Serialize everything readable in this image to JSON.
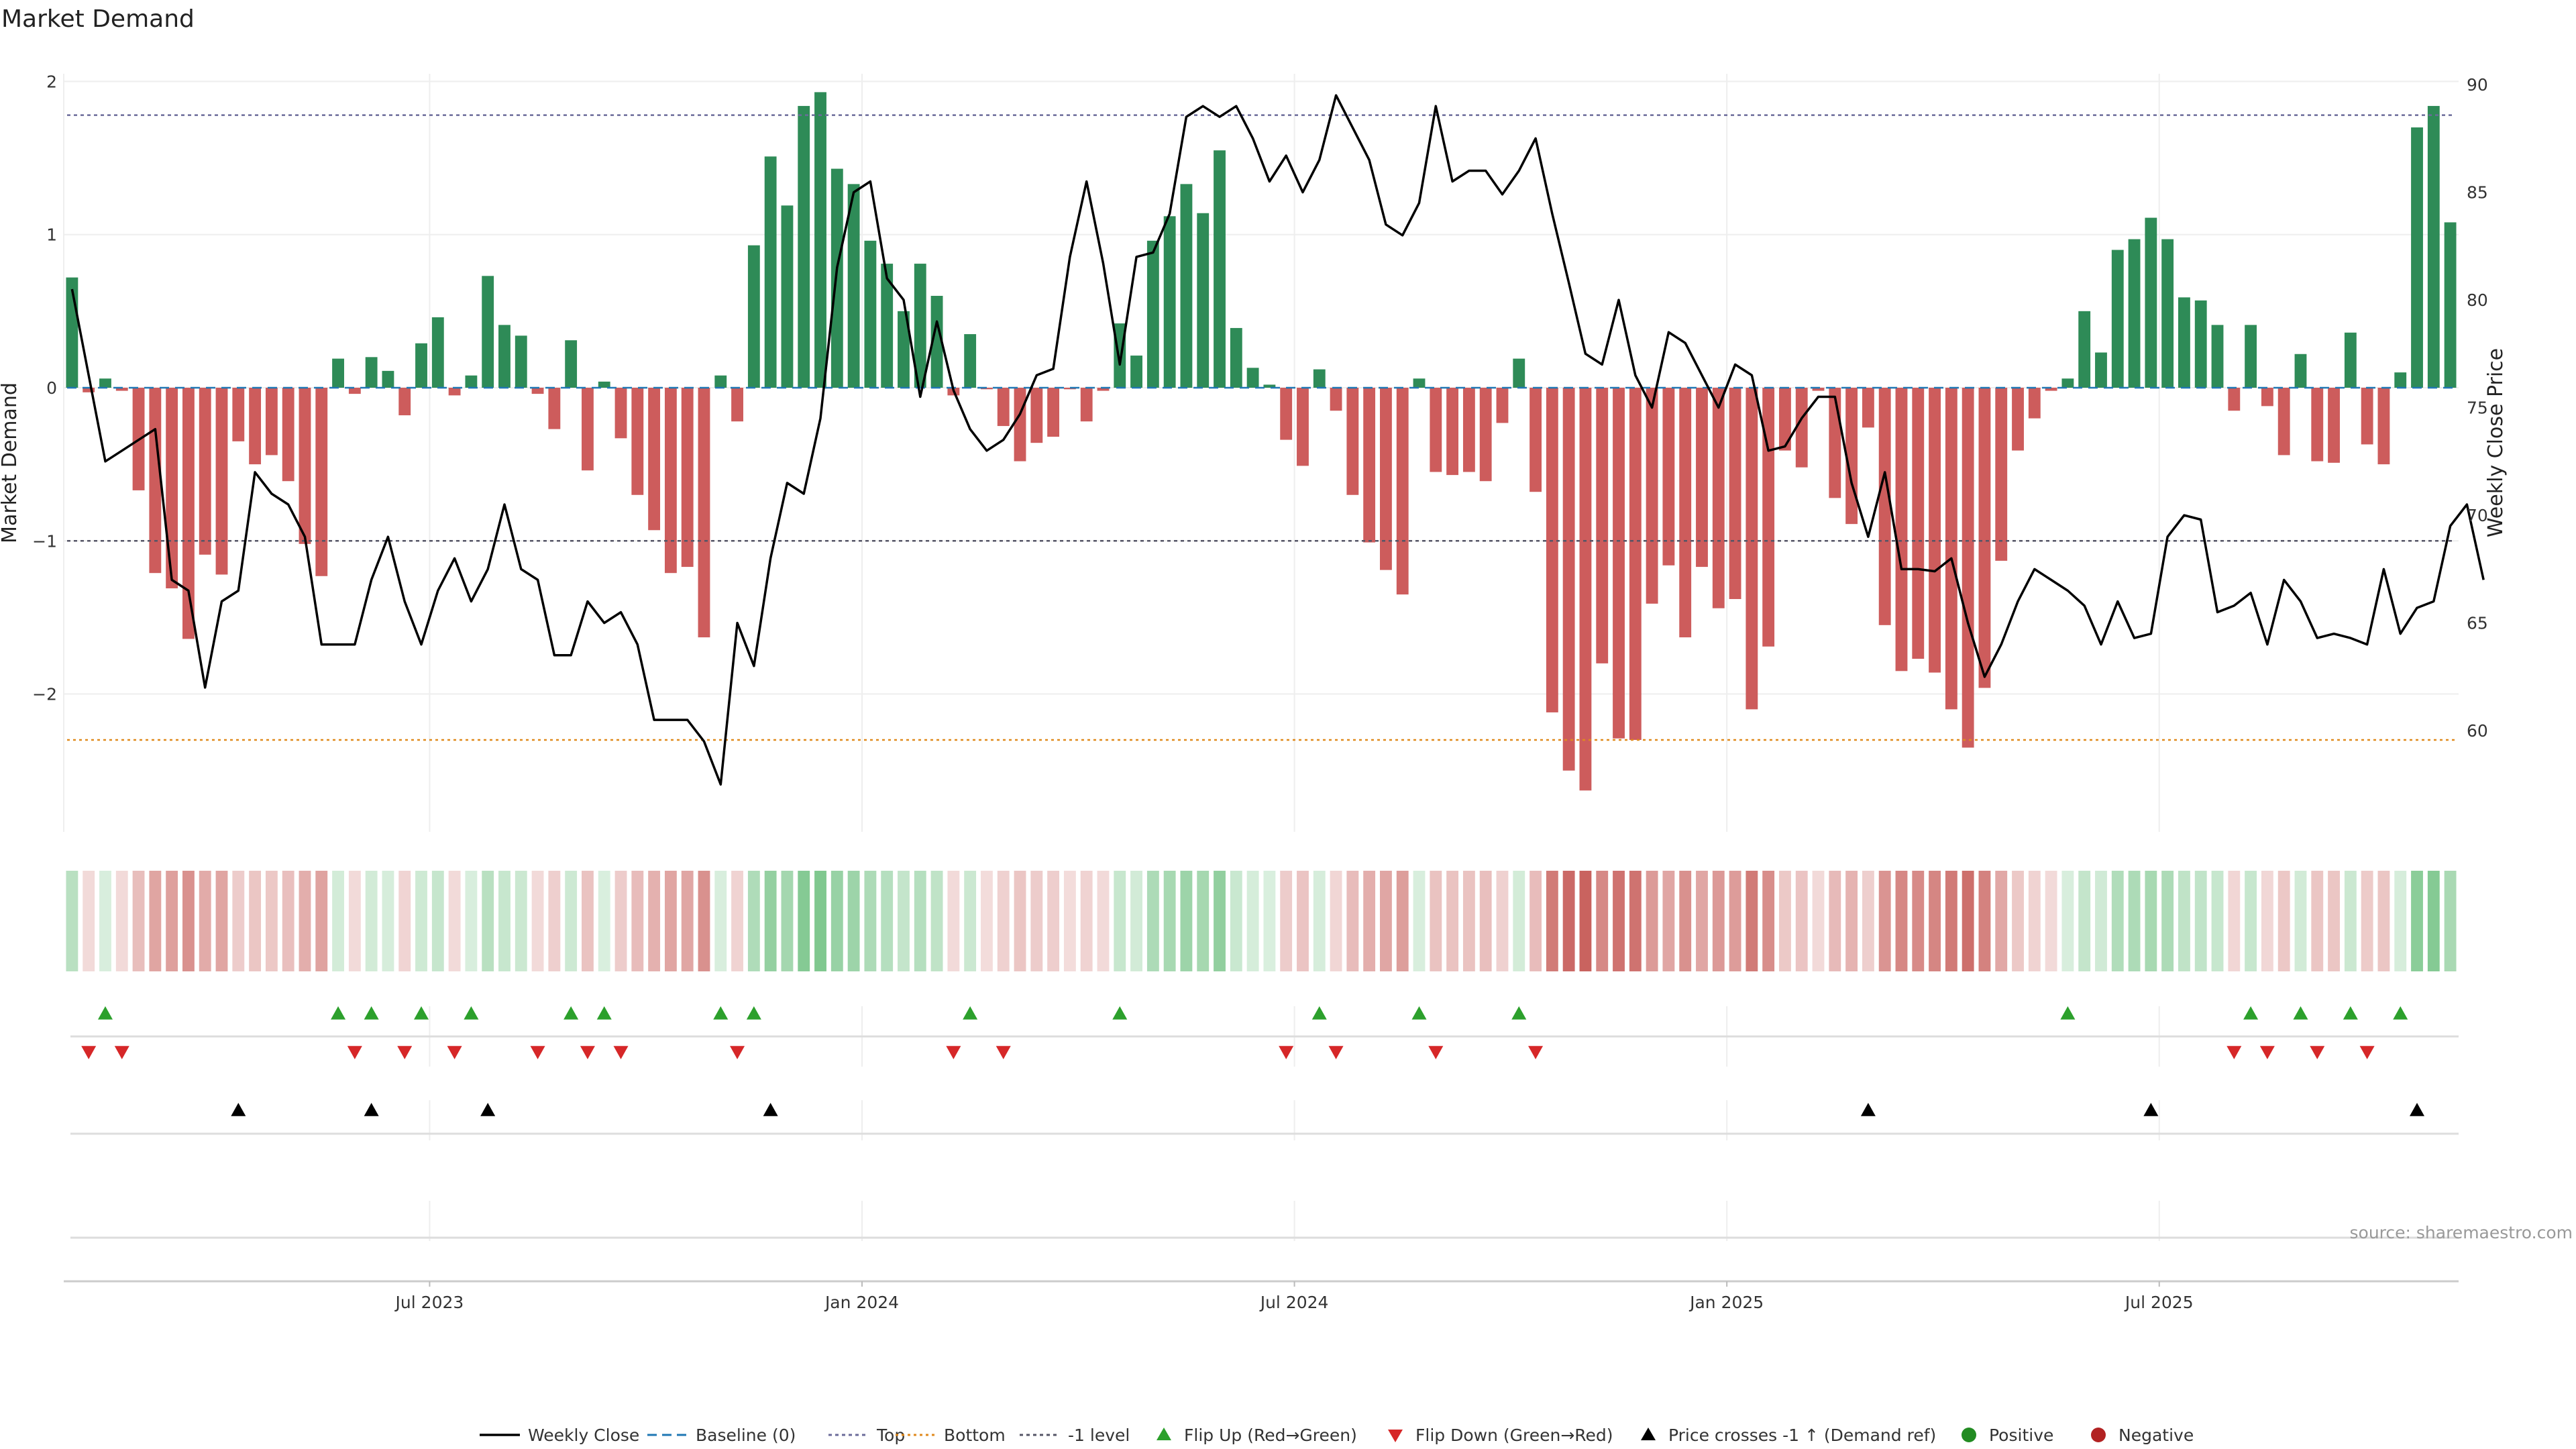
{
  "chart_data": {
    "type": "bar",
    "title": "Market Demand",
    "ylabel_left": "Market Demand",
    "ylabel_right": "Weekly Close Price",
    "source": "source: sharemaestro.com",
    "ylim_left": [
      -2.9,
      2.05
    ],
    "ylim_right": [
      55.3,
      90.5
    ],
    "yticks_left": [
      {
        "value": 2,
        "label": "2"
      },
      {
        "value": 1,
        "label": "1"
      },
      {
        "value": 0,
        "label": "0"
      },
      {
        "value": -1,
        "label": "−1"
      },
      {
        "value": -2,
        "label": "−2"
      }
    ],
    "yticks_right": [
      {
        "value": 90,
        "label": "90"
      },
      {
        "value": 85,
        "label": "85"
      },
      {
        "value": 80,
        "label": "80"
      },
      {
        "value": 75,
        "label": "75"
      },
      {
        "value": 70,
        "label": "70"
      },
      {
        "value": 65,
        "label": "65"
      },
      {
        "value": 60,
        "label": "60"
      }
    ],
    "xticks": [
      {
        "week": 22,
        "label": "Jul 2023"
      },
      {
        "week": 48,
        "label": "Jan 2024"
      },
      {
        "week": 74,
        "label": "Jul 2024"
      },
      {
        "week": 100,
        "label": "Jan 2025"
      },
      {
        "week": 126,
        "label": "Jul 2025"
      }
    ],
    "reference_lines": {
      "top": 1.78,
      "bottom": -2.3,
      "minus_one": -1.0,
      "baseline": 0
    },
    "x_count": 144,
    "series": [
      {
        "name": "Market Demand",
        "values": [
          0.72,
          -0.03,
          0.06,
          -0.02,
          -0.67,
          -1.21,
          -1.31,
          -1.64,
          -1.09,
          -1.22,
          -0.35,
          -0.5,
          -0.44,
          -0.61,
          -1.02,
          -1.23,
          0.19,
          -0.04,
          0.2,
          0.11,
          -0.18,
          0.29,
          0.46,
          -0.05,
          0.08,
          0.73,
          0.41,
          0.34,
          -0.04,
          -0.27,
          0.31,
          -0.54,
          0.04,
          -0.33,
          -0.7,
          -0.93,
          -1.21,
          -1.17,
          -1.63,
          0.08,
          -0.22,
          0.93,
          1.51,
          1.19,
          1.84,
          1.93,
          1.43,
          1.33,
          0.96,
          0.81,
          0.5,
          0.81,
          0.6,
          -0.05,
          0.35,
          -0.01,
          -0.25,
          -0.48,
          -0.36,
          -0.32,
          -0.01,
          -0.22,
          -0.02,
          0.42,
          0.21,
          0.96,
          1.12,
          1.33,
          1.14,
          1.55,
          0.39,
          0.13,
          0.02,
          -0.34,
          -0.51,
          0.12,
          -0.15,
          -0.7,
          -1.01,
          -1.19,
          -1.35,
          0.06,
          -0.55,
          -0.57,
          -0.55,
          -0.61,
          -0.23,
          0.19,
          -0.68,
          -2.12,
          -2.5,
          -2.63,
          -1.8,
          -2.29,
          -2.3,
          -1.41,
          -1.16,
          -1.63,
          -1.17,
          -1.44,
          -1.38,
          -2.1,
          -1.69,
          -0.41,
          -0.52,
          -0.02,
          -0.72,
          -0.89,
          -0.26,
          -1.55,
          -1.85,
          -1.77,
          -1.86,
          -2.1,
          -2.35,
          -1.96,
          -1.13,
          -0.41,
          -0.2,
          -0.02,
          0.06,
          0.5,
          0.23,
          0.9,
          0.97,
          1.11,
          0.97,
          0.59,
          0.57,
          0.41,
          -0.15,
          0.41,
          -0.12,
          -0.44,
          0.22,
          -0.48,
          -0.49,
          0.36,
          -0.37,
          -0.5,
          0.1,
          1.7,
          1.84,
          1.08
        ]
      },
      {
        "name": "Weekly Close",
        "values": [
          80.5,
          76.5,
          72.5,
          73.0,
          73.5,
          74.0,
          67.0,
          66.5,
          62.0,
          66.0,
          66.5,
          72.0,
          71.0,
          70.5,
          69.0,
          64.0,
          64.0,
          64.0,
          67.0,
          69.0,
          66.0,
          64.0,
          66.5,
          68.0,
          66.0,
          67.5,
          70.5,
          67.5,
          67.0,
          63.5,
          63.5,
          66.0,
          65.0,
          65.5,
          64.0,
          60.5,
          60.5,
          60.5,
          59.5,
          57.5,
          65.0,
          63.0,
          68.0,
          71.5,
          71.0,
          74.5,
          81.5,
          85.0,
          85.5,
          81.0,
          80.0,
          75.5,
          79.0,
          75.8,
          74.0,
          73.0,
          73.5,
          74.7,
          76.5,
          76.8,
          82.0,
          85.5,
          81.7,
          77.0,
          82.0,
          82.2,
          84.0,
          88.5,
          89.0,
          88.5,
          89.0,
          87.5,
          85.5,
          86.7,
          85.0,
          86.5,
          89.5,
          88.0,
          86.5,
          83.5,
          83.0,
          84.5,
          89.0,
          85.5,
          86.0,
          86.0,
          84.9,
          86.0,
          87.5,
          84.0,
          80.8,
          77.5,
          77.0,
          80.0,
          76.5,
          75.0,
          78.5,
          78.0,
          76.5,
          75.0,
          77.0,
          76.5,
          73.0,
          73.2,
          74.5,
          75.5,
          75.5,
          71.5,
          69.0,
          72.0,
          67.5,
          67.5,
          67.4,
          68.0,
          65.0,
          62.5,
          64.0,
          66.0,
          67.5,
          67.0,
          66.5,
          65.8,
          64.0,
          66.0,
          64.3,
          64.5,
          69.0,
          70.0,
          69.8,
          65.5,
          65.8,
          66.4,
          64.0,
          67.0,
          66.0,
          64.3,
          64.5,
          64.3,
          64.0,
          67.5,
          64.5,
          65.7,
          66.0,
          69.5,
          70.5,
          67.0
        ]
      }
    ],
    "heat_strip": "Market Demand intensity per week",
    "events": {
      "flip_up_weeks": [
        2,
        16,
        18,
        21,
        24,
        30,
        32,
        39,
        41,
        54,
        63,
        75,
        81,
        87,
        120,
        131,
        134,
        137,
        140
      ],
      "flip_down_weeks": [
        1,
        3,
        17,
        20,
        23,
        28,
        31,
        33,
        40,
        53,
        56,
        73,
        76,
        82,
        88,
        130,
        132,
        135,
        138
      ],
      "price_crosses_weeks": [
        10,
        18,
        25,
        42,
        108,
        125,
        141
      ]
    },
    "legend": [
      {
        "key": "weekly-close",
        "label": "Weekly Close"
      },
      {
        "key": "baseline",
        "label": "Baseline (0)"
      },
      {
        "key": "top",
        "label": "Top"
      },
      {
        "key": "bottom",
        "label": "Bottom"
      },
      {
        "key": "minus-one",
        "label": "-1 level"
      },
      {
        "key": "flip-up",
        "label": "Flip Up (Red→Green)"
      },
      {
        "key": "flip-down",
        "label": "Flip Down (Green→Red)"
      },
      {
        "key": "price-cross",
        "label": "Price crosses -1 ↑ (Demand ref)"
      },
      {
        "key": "positive",
        "label": "Positive"
      },
      {
        "key": "negative",
        "label": "Negative"
      }
    ],
    "colors": {
      "positive": "#2e8b57",
      "negative": "#cd5c5c",
      "price_line": "#000000",
      "top_line": "#6b6b9a",
      "bottom_line": "#e08a1e",
      "baseline": "#1f77b4",
      "flip_up": "#2ca02c",
      "flip_down": "#d62728",
      "price_cross": "#000000",
      "legend_positive": "#228b22",
      "legend_negative": "#b22222"
    }
  }
}
